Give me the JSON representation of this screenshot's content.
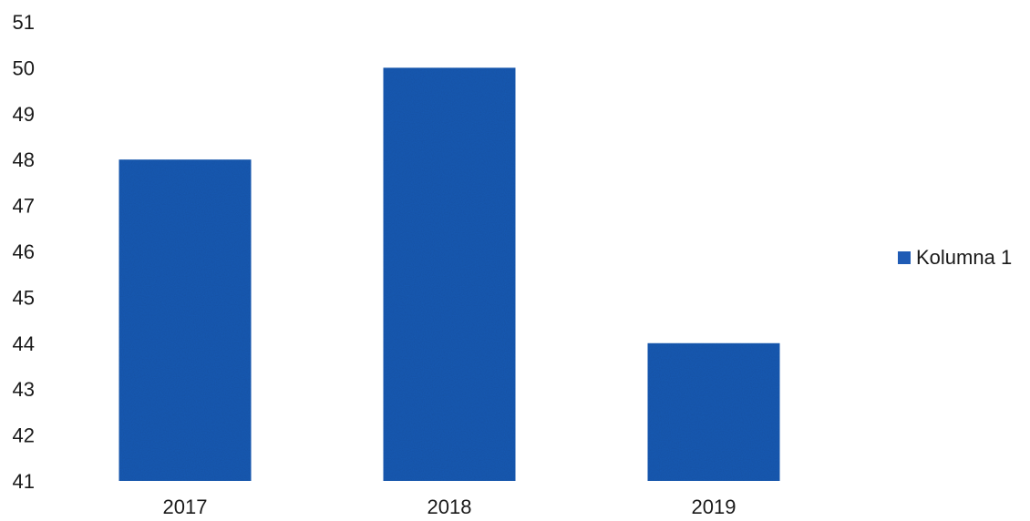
{
  "chart_data": {
    "type": "bar",
    "categories": [
      "2017",
      "2018",
      "2019"
    ],
    "series": [
      {
        "name": "Kolumna 1",
        "values": [
          48,
          50,
          44
        ]
      }
    ],
    "ylim": [
      41,
      51
    ],
    "yticks": [
      "41",
      "42",
      "43",
      "44",
      "45",
      "46",
      "47",
      "48",
      "49",
      "50",
      "51"
    ],
    "grid": false,
    "legend_position": "right",
    "bar_color": "#1f5bb5"
  }
}
